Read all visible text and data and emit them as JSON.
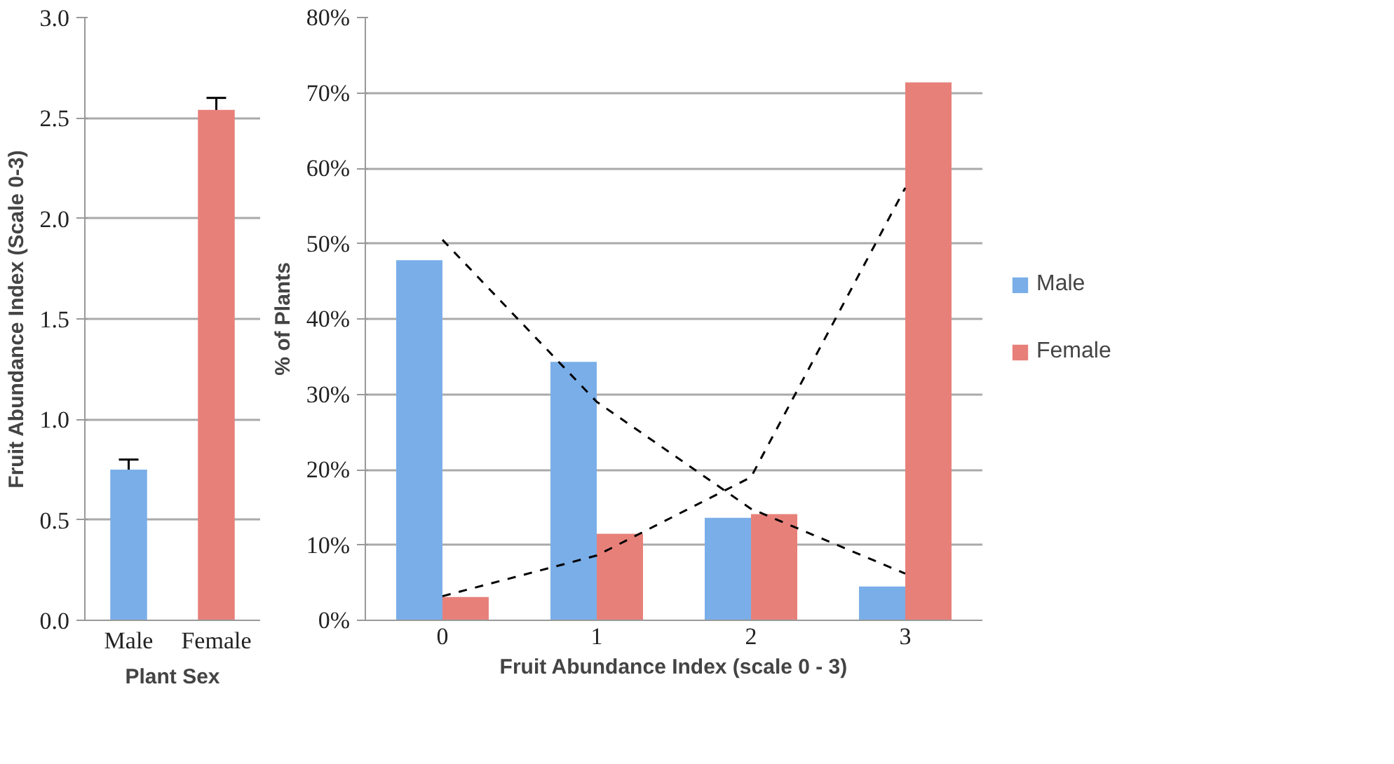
{
  "chart_data": [
    {
      "type": "bar",
      "xlabel": "Plant Sex",
      "ylabel": "Fruit Abundance Index (Scale 0-3)",
      "categories": [
        "Male",
        "Female"
      ],
      "values": [
        0.75,
        2.54
      ],
      "colors": [
        "#7aaee8",
        "#e8807a"
      ],
      "errors": [
        0.05,
        0.06
      ],
      "ylim": [
        0,
        3
      ],
      "yticks": [
        {
          "value": 0,
          "label": "0.0"
        },
        {
          "value": 0.5,
          "label": "0.5"
        },
        {
          "value": 1,
          "label": "1.0"
        },
        {
          "value": 1.5,
          "label": "1.5"
        },
        {
          "value": 2,
          "label": "2.0"
        },
        {
          "value": 2.5,
          "label": "2.5"
        },
        {
          "value": 3,
          "label": "3.0"
        }
      ],
      "grid": "y",
      "legend": false
    },
    {
      "type": "bar",
      "xlabel": "Fruit Abundance Index (scale 0 - 3)",
      "ylabel": "% of Plants",
      "categories": [
        "0",
        "1",
        "2",
        "3"
      ],
      "series": [
        {
          "name": "Male",
          "color": "#7aaee8",
          "values": [
            47.8,
            34.3,
            13.6,
            4.5
          ]
        },
        {
          "name": "Female",
          "color": "#e8807a",
          "values": [
            3.1,
            11.5,
            14.1,
            71.4
          ]
        },
        {
          "type": "line",
          "color": "#000000",
          "line_style": "dashed",
          "values": [
            50.5,
            29,
            14.8,
            6.2
          ]
        },
        {
          "type": "line",
          "color": "#000000",
          "line_style": "dashed",
          "values": [
            3.2,
            8.6,
            19,
            57.4
          ]
        }
      ],
      "ylim": [
        0,
        80
      ],
      "yticks": [
        {
          "value": 0,
          "label": "0%"
        },
        {
          "value": 10,
          "label": "10%"
        },
        {
          "value": 20,
          "label": "20%"
        },
        {
          "value": 30,
          "label": "30%"
        },
        {
          "value": 40,
          "label": "40%"
        },
        {
          "value": 50,
          "label": "50%"
        },
        {
          "value": 60,
          "label": "60%"
        },
        {
          "value": 70,
          "label": "70%"
        },
        {
          "value": 80,
          "label": "80%"
        }
      ],
      "grid": "y",
      "legend": "right"
    }
  ]
}
